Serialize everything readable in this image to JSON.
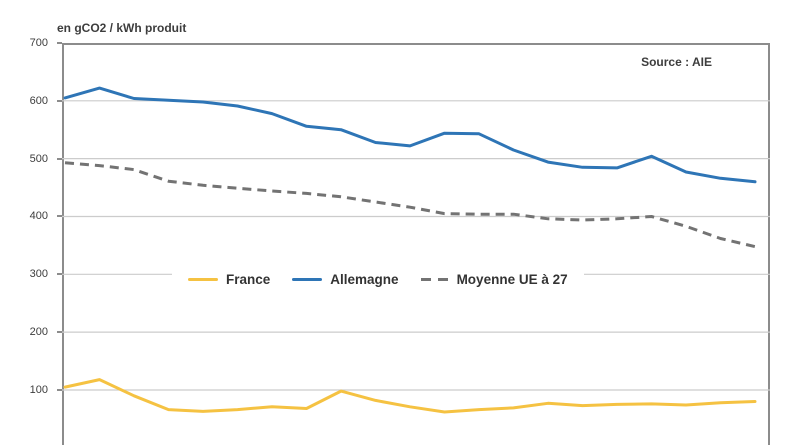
{
  "chart_data": {
    "type": "line",
    "title": "",
    "ylabel": "en gCO2 / kWh produit",
    "source": "Source : AIE",
    "ylim": [
      0,
      700
    ],
    "y_ticks": [
      700,
      600,
      500,
      400,
      300,
      200,
      100
    ],
    "x_labels_visible": false,
    "grid": true,
    "legend_position": "center-overlay",
    "series": [
      {
        "name": "France",
        "color": "#F5C242",
        "style": "solid",
        "values": [
          105,
          118,
          90,
          66,
          63,
          66,
          71,
          68,
          98,
          82,
          71,
          62,
          66,
          69,
          77,
          73,
          75,
          76,
          74,
          78,
          80
        ]
      },
      {
        "name": "Allemagne",
        "color": "#2E75B6",
        "style": "solid",
        "values": [
          605,
          622,
          604,
          601,
          598,
          591,
          578,
          556,
          550,
          528,
          522,
          544,
          543,
          515,
          494,
          485,
          484,
          504,
          477,
          466,
          460
        ]
      },
      {
        "name": "Moyenne UE à 27",
        "color": "#737373",
        "style": "dashed",
        "values": [
          493,
          488,
          481,
          461,
          454,
          449,
          444,
          440,
          434,
          425,
          416,
          405,
          404,
          404,
          396,
          394,
          396,
          400,
          383,
          362,
          348
        ]
      }
    ]
  },
  "colors": {
    "gridline": "#cccccc",
    "frame": "#8c8c8c",
    "text": "#3d3d3d"
  }
}
